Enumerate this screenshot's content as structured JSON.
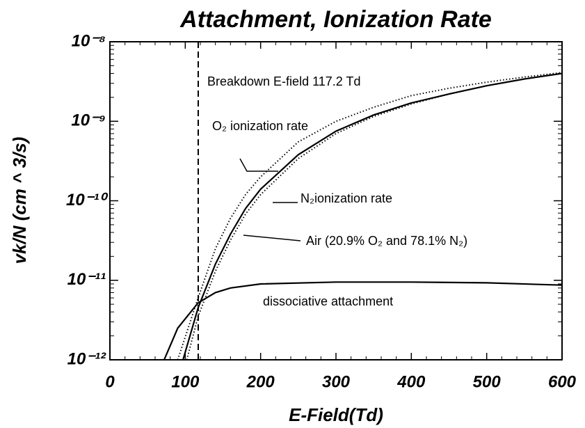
{
  "chart_data": {
    "type": "line",
    "title": "Attachment, Ionization Rate",
    "xlabel": "E-Field(Td)",
    "ylabel": "vk/N (cm ^ 3/s)",
    "xlim": [
      0,
      600
    ],
    "ylim": [
      1e-12,
      1e-08
    ],
    "log_y": true,
    "xticks": [
      0,
      100,
      200,
      300,
      400,
      500,
      600
    ],
    "yticks": [
      {
        "value": 1e-12,
        "label": "10⁻¹²"
      },
      {
        "value": 1e-11,
        "label": "10⁻¹¹"
      },
      {
        "value": 1e-10,
        "label": "10⁻¹⁰"
      },
      {
        "value": 1e-09,
        "label": "10⁻⁹"
      },
      {
        "value": 1e-08,
        "label": "10⁻⁸"
      }
    ],
    "breakdown": {
      "value": 117.2,
      "label": "Breakdown E-field 117.2 Td"
    },
    "series": [
      {
        "name": "O₂ ionization rate",
        "color": "#000000",
        "style": "dotted",
        "x": [
          90,
          117,
          140,
          160,
          180,
          200,
          250,
          300,
          350,
          400,
          450,
          500,
          550,
          600
        ],
        "values": [
          1e-12,
          6e-12,
          2.5e-11,
          6e-11,
          1.2e-10,
          2e-10,
          5.5e-10,
          1e-09,
          1.5e-09,
          2.1e-09,
          2.6e-09,
          3.1e-09,
          3.6e-09,
          4.1e-09
        ]
      },
      {
        "name": "N₂ionization rate",
        "color": "#000000",
        "style": "dotted",
        "x": [
          102,
          117,
          140,
          160,
          180,
          200,
          250,
          300,
          350,
          400,
          450,
          500,
          550,
          600
        ],
        "values": [
          1e-12,
          3.5e-12,
          1.3e-11,
          3.2e-11,
          6.8e-11,
          1.2e-10,
          3.4e-10,
          7e-10,
          1.15e-09,
          1.65e-09,
          2.2e-09,
          2.8e-09,
          3.4e-09,
          4e-09
        ]
      },
      {
        "name": "Air (20.9% O₂ and 78.1% N₂)",
        "color": "#000000",
        "style": "solid",
        "x": [
          97,
          117,
          140,
          160,
          180,
          200,
          250,
          300,
          350,
          400,
          450,
          500,
          550,
          600
        ],
        "values": [
          1e-12,
          4.5e-12,
          1.6e-11,
          3.8e-11,
          8e-11,
          1.4e-10,
          3.8e-10,
          7.5e-10,
          1.2e-09,
          1.7e-09,
          2.2e-09,
          2.8e-09,
          3.4e-09,
          4e-09
        ]
      },
      {
        "name": "dissociative attachment",
        "color": "#000000",
        "style": "solid",
        "x": [
          72,
          90,
          117,
          140,
          160,
          200,
          300,
          400,
          500,
          600
        ],
        "values": [
          1e-12,
          2.5e-12,
          5.2e-12,
          7e-12,
          8e-12,
          9e-12,
          9.5e-12,
          9.5e-12,
          9.3e-12,
          8.7e-12
        ]
      }
    ]
  }
}
